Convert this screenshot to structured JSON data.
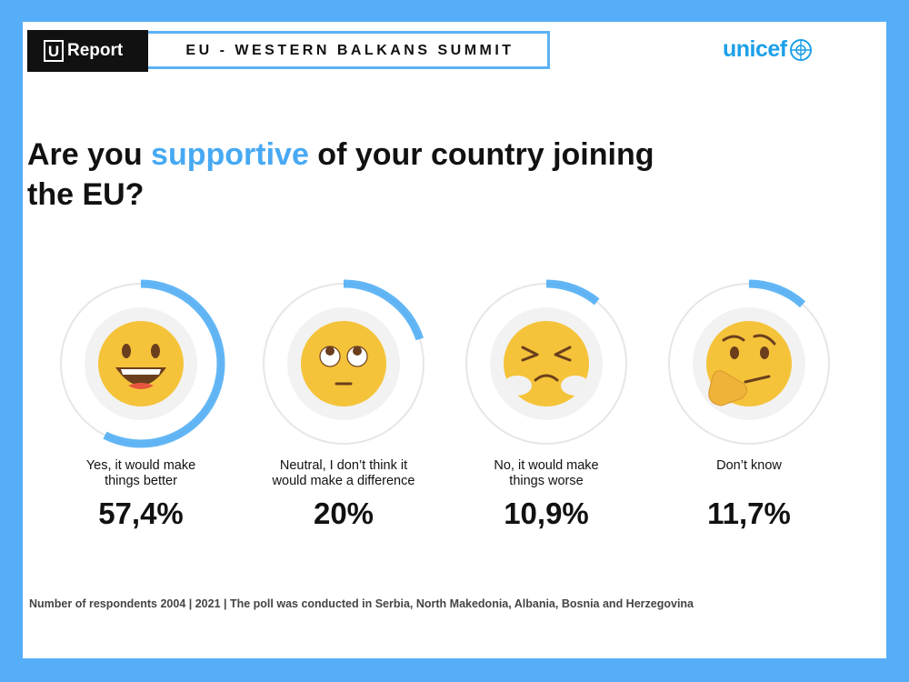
{
  "header": {
    "brand_icon": "U",
    "brand_text": "Report",
    "summit_title": "EU - WESTERN BALKANS SUMMIT",
    "partner_logo_text": "unicef"
  },
  "question": {
    "part1": "Are you ",
    "highlight": "supportive",
    "part2": " of your country joining the EU?"
  },
  "colors": {
    "background": "#55aef7",
    "accent": "#47a9f3",
    "ring_track": "#e6e6e6",
    "emoji_face": "#f5c33a"
  },
  "chart_data": {
    "type": "pie",
    "title": "Are you supportive of your country joining the EU?",
    "categories": [
      "Yes, it would make things better",
      "Neutral, I don't think it would make a difference",
      "No, it would make things worse",
      "Don't know"
    ],
    "values": [
      57.4,
      20,
      10.9,
      11.7
    ],
    "value_labels": [
      "57,4%",
      "20%",
      "10,9%",
      "11,7%"
    ],
    "emoji_icons": [
      "grinning-face-icon",
      "eye-roll-face-icon",
      "steam-face-icon",
      "thinking-face-icon"
    ],
    "label_lines": [
      [
        "Yes, it would make",
        "things better"
      ],
      [
        "Neutral, I don’t think it",
        "would make a difference"
      ],
      [
        "No, it would make",
        "things worse"
      ],
      [
        "Don’t know",
        ""
      ]
    ]
  },
  "footer": {
    "note": "Number of respondents 2004 | 2021 | The poll was conducted in Serbia, North Makedonia, Albania, Bosnia and Herzegovina"
  }
}
